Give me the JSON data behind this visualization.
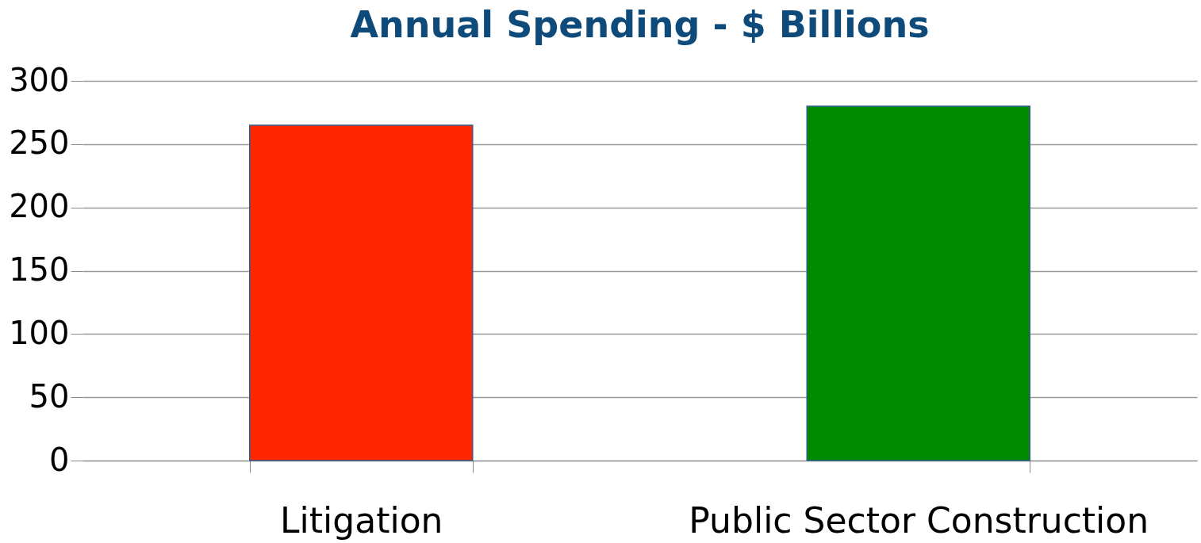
{
  "chart_data": {
    "type": "bar",
    "title": "Annual Spending - $ Billions",
    "categories": [
      "Litigation",
      "Public Sector Construction"
    ],
    "values": [
      265,
      280
    ],
    "colors": [
      "#ff2600",
      "#008a00"
    ],
    "ylim": [
      0,
      300
    ],
    "yticks": [
      0,
      50,
      100,
      150,
      200,
      250,
      300
    ],
    "grid": "y",
    "legend": false
  }
}
